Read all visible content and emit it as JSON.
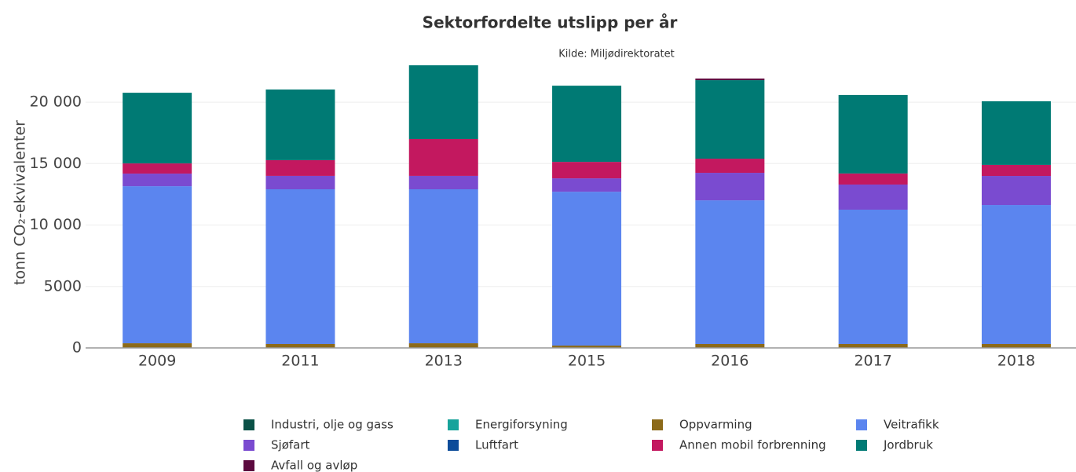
{
  "chart_data": {
    "type": "stacked_bar",
    "title": "Sektorfordelte utslipp per år",
    "subtitle": "Kilde: Miljødirektoratet",
    "y_label": "tonn CO₂-ekvivalenter",
    "categories": [
      "2009",
      "2011",
      "2013",
      "2015",
      "2016",
      "2017",
      "2018"
    ],
    "series": [
      {
        "name": "Industri, olje og gass",
        "color": "#0b5147",
        "values": [
          0,
          0,
          0,
          0,
          0,
          0,
          0
        ]
      },
      {
        "name": "Energiforsyning",
        "color": "#17a39b",
        "values": [
          0,
          0,
          0,
          0,
          0,
          0,
          0
        ]
      },
      {
        "name": "Oppvarming",
        "color": "#8c6a1a",
        "values": [
          380,
          320,
          380,
          190,
          320,
          320,
          320
        ]
      },
      {
        "name": "Veitrafikk",
        "color": "#5b85ef",
        "values": [
          12780,
          12590,
          12530,
          12520,
          11690,
          10930,
          11310
        ]
      },
      {
        "name": "Sjøfart",
        "color": "#7a4bd0",
        "values": [
          1025,
          1090,
          1090,
          1090,
          2240,
          2045,
          2365
        ]
      },
      {
        "name": "Luftfart",
        "color": "#0d4c9a",
        "values": [
          0,
          0,
          0,
          0,
          0,
          0,
          0
        ]
      },
      {
        "name": "Annen mobil forbrenning",
        "color": "#c3185f",
        "values": [
          830,
          1280,
          3000,
          1340,
          1150,
          900,
          900
        ]
      },
      {
        "name": "Jordbruk",
        "color": "#007a74",
        "values": [
          5750,
          5750,
          6000,
          6200,
          6390,
          6390,
          5180
        ]
      },
      {
        "name": "Avfall og avløp",
        "color": "#5c0a3f",
        "values": [
          0,
          0,
          0,
          0,
          130,
          0,
          0
        ]
      }
    ],
    "ylim": [
      0,
      23200
    ],
    "yticks": [
      0,
      5000,
      {
        "value": 10000,
        "label": "10 000"
      },
      {
        "value": 15000,
        "label": "15 000"
      },
      {
        "value": 20000,
        "label": "20 000"
      }
    ],
    "grid": true
  }
}
